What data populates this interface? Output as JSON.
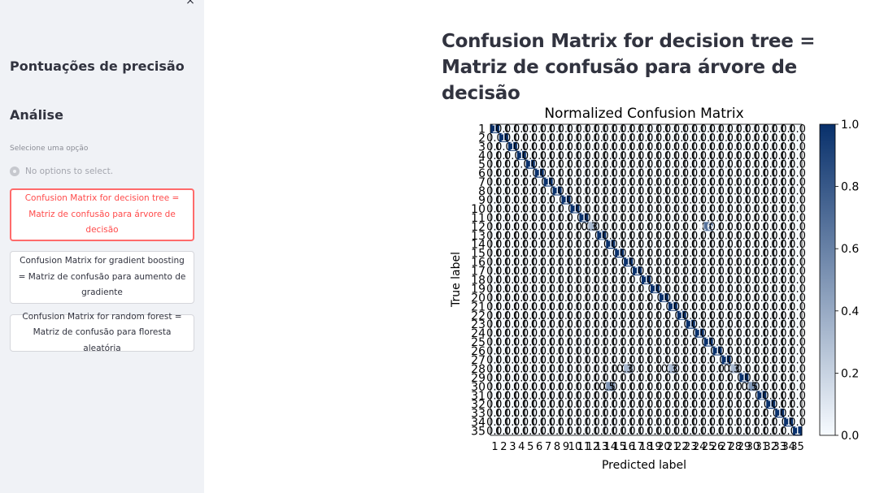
{
  "sidebar": {
    "close_symbol": "×",
    "heading_scores": "Pontuações de precisão",
    "heading_analysis": "Análise",
    "select_caption": "Selecione uma opção",
    "radio_empty": "No options to select.",
    "buttons": [
      {
        "label": "Confusion Matrix for decision tree = Matriz de confusão para árvore de decisão",
        "active": true
      },
      {
        "label": "Confusion Matrix for gradient boosting = Matriz de confusão para aumento de gradiente",
        "active": false
      },
      {
        "label": "Confusion Matrix for random forest = Matriz de confusão para floresta aleatória",
        "active": false
      }
    ]
  },
  "main": {
    "title": "Confusion Matrix for decision tree = Matriz de confusão para árvore de decisão"
  },
  "chart_data": {
    "type": "heatmap",
    "title": "Normalized Confusion Matrix",
    "xlabel": "Predicted label",
    "ylabel": "True label",
    "labels": [
      "1",
      "2",
      "3",
      "4",
      "5",
      "6",
      "7",
      "8",
      "9",
      "10",
      "11",
      "12",
      "13",
      "14",
      "15",
      "16",
      "17",
      "18",
      "19",
      "20",
      "21",
      "22",
      "23",
      "24",
      "25",
      "26",
      "27",
      "28",
      "29",
      "30",
      "31",
      "32",
      "33",
      "34",
      "35"
    ],
    "cell_text": "0.0",
    "diagonal_value": 1.0,
    "off_diagonal": [
      {
        "row": "12",
        "col": "12",
        "value": 0.33
      },
      {
        "row": "12",
        "col": "25",
        "value": 0.67
      },
      {
        "row": "28",
        "col": "16",
        "value": 0.33
      },
      {
        "row": "28",
        "col": "21",
        "value": 0.33
      },
      {
        "row": "28",
        "col": "28",
        "value": 0.33
      },
      {
        "row": "30",
        "col": "14",
        "value": 0.5
      },
      {
        "row": "30",
        "col": "30",
        "value": 0.5
      }
    ],
    "colorbar_ticks": [
      "1.0",
      "0.8",
      "0.6",
      "0.4",
      "0.2",
      "0.0"
    ],
    "colorbar_range": [
      0.0,
      1.0
    ],
    "colormap": [
      "#f7fbff",
      "#08306b"
    ]
  }
}
